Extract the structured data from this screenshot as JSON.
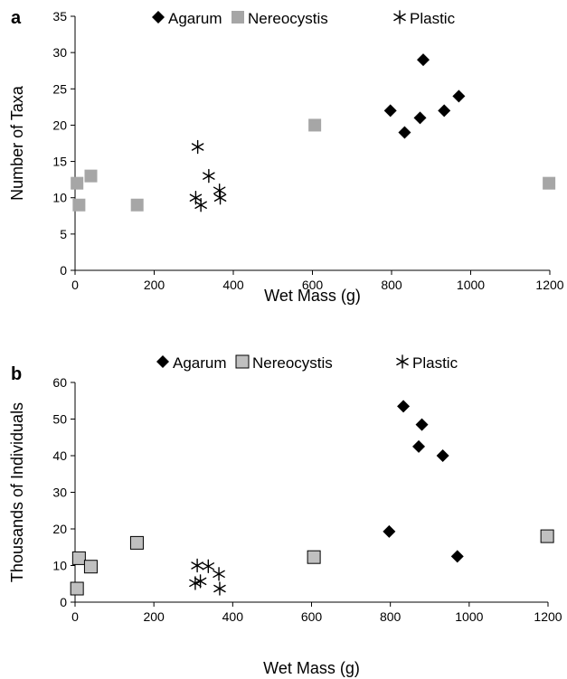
{
  "chart_data": [
    {
      "type": "scatter",
      "panel_label": "a",
      "xlabel": "Wet Mass (g)",
      "ylabel": "Number of Taxa",
      "xlim": [
        0,
        1200
      ],
      "ylim": [
        0,
        35
      ],
      "xticks": [
        "0",
        "200",
        "400",
        "600",
        "800",
        "1000",
        "1200"
      ],
      "yticks": [
        "0",
        "5",
        "10",
        "15",
        "20",
        "25",
        "30",
        "35"
      ],
      "xtick_values": [
        0,
        200,
        400,
        600,
        800,
        1000,
        1200
      ],
      "ytick_values": [
        0,
        5,
        10,
        15,
        20,
        25,
        30,
        35
      ],
      "grid": false,
      "legend_position": "top",
      "series": [
        {
          "name": "Agarum",
          "marker": "diamond",
          "color": "#000000",
          "points": [
            [
              797,
              22
            ],
            [
              833,
              19
            ],
            [
              872,
              21
            ],
            [
              880,
              29
            ],
            [
              933,
              22
            ],
            [
              970,
              24
            ]
          ]
        },
        {
          "name": "Nereocystis",
          "marker": "square",
          "color": "#a6a6a6",
          "points": [
            [
              5,
              12
            ],
            [
              10,
              9
            ],
            [
              40,
              13
            ],
            [
              157,
              9
            ],
            [
              606,
              20
            ],
            [
              1198,
              12
            ]
          ]
        },
        {
          "name": "Plastic",
          "marker": "asterisk",
          "color": "#000000",
          "points": [
            [
              305,
              10
            ],
            [
              310,
              17
            ],
            [
              318,
              9
            ],
            [
              338,
              13
            ],
            [
              365,
              11
            ],
            [
              367,
              10
            ]
          ]
        }
      ]
    },
    {
      "type": "scatter",
      "panel_label": "b",
      "xlabel": "Wet Mass (g)",
      "ylabel": "Thousands of Individuals",
      "xlim": [
        0,
        1200
      ],
      "ylim": [
        0,
        60
      ],
      "xticks": [
        "0",
        "200",
        "400",
        "600",
        "800",
        "1000",
        "1200"
      ],
      "yticks": [
        "0",
        "10",
        "20",
        "30",
        "40",
        "50",
        "60"
      ],
      "xtick_values": [
        0,
        200,
        400,
        600,
        800,
        1000,
        1200
      ],
      "ytick_values": [
        0,
        10,
        20,
        30,
        40,
        50,
        60
      ],
      "grid": false,
      "legend_position": "top",
      "series": [
        {
          "name": "Agarum",
          "marker": "diamond",
          "color": "#000000",
          "points": [
            [
              797,
              19.3
            ],
            [
              833,
              53.5
            ],
            [
              872,
              42.5
            ],
            [
              880,
              48.5
            ],
            [
              933,
              40
            ],
            [
              970,
              12.5
            ]
          ]
        },
        {
          "name": "Nereocystis",
          "marker": "square-outlined",
          "color": "#c0c0c0",
          "points": [
            [
              5,
              3.7
            ],
            [
              10,
              12
            ],
            [
              40,
              9.7
            ],
            [
              157,
              16.2
            ],
            [
              606,
              12.3
            ],
            [
              1198,
              18
            ]
          ]
        },
        {
          "name": "Plastic",
          "marker": "asterisk",
          "color": "#000000",
          "points": [
            [
              305,
              5.2
            ],
            [
              310,
              10
            ],
            [
              318,
              5.7
            ],
            [
              338,
              9.8
            ],
            [
              365,
              7.7
            ],
            [
              367,
              3.7
            ]
          ]
        }
      ]
    }
  ]
}
